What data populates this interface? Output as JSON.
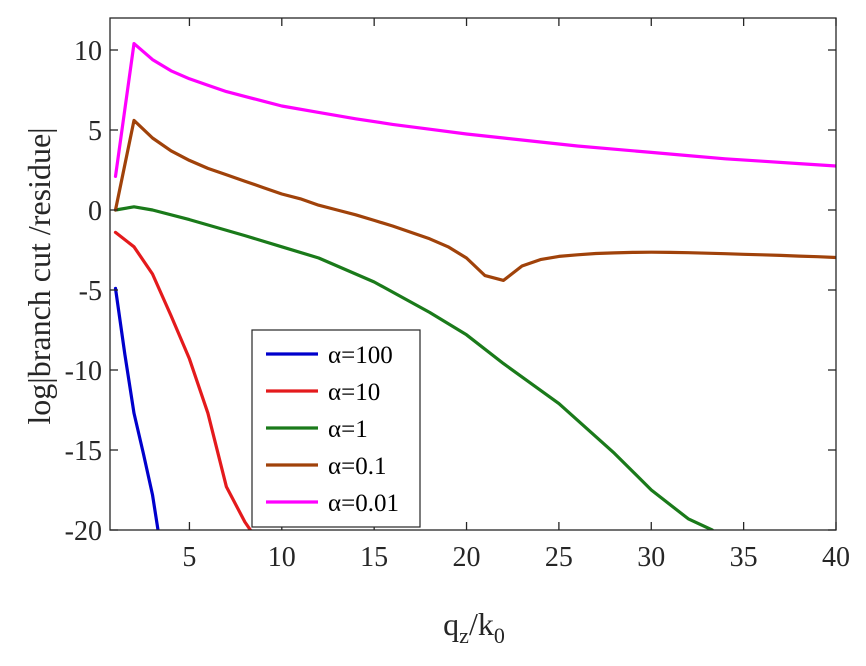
{
  "chart_data": {
    "type": "line",
    "xlabel": {
      "main": "q",
      "sub1": "z",
      "slash": "/k",
      "sub2": "0"
    },
    "ylabel": "log|branch cut /residue|",
    "xlim": [
      0.7,
      40
    ],
    "ylim": [
      -20,
      12
    ],
    "xticks": [
      5,
      10,
      15,
      20,
      25,
      30,
      35,
      40
    ],
    "yticks": [
      10,
      5,
      0,
      -5,
      -10,
      -15,
      -20
    ],
    "grid": false,
    "legend_position": "lower-left",
    "series": [
      {
        "name": "α=100",
        "color": "#0000cc",
        "x": [
          1,
          1.5,
          2,
          2.5,
          3,
          3.3
        ],
        "y": [
          -4.9,
          -9.0,
          -12.7,
          -15.2,
          -17.8,
          -20
        ]
      },
      {
        "name": "α=10",
        "color": "#e41a1c",
        "x": [
          1,
          2,
          3,
          4,
          5,
          6,
          7,
          8,
          8.3
        ],
        "y": [
          -1.4,
          -2.3,
          -4.0,
          -6.6,
          -9.3,
          -12.7,
          -17.3,
          -19.5,
          -20
        ]
      },
      {
        "name": "α=1",
        "color": "#1a7a1a",
        "x": [
          1,
          2,
          3,
          5,
          8,
          10,
          12,
          15,
          18,
          20,
          22,
          25,
          28,
          30,
          32,
          33.3
        ],
        "y": [
          0.0,
          0.2,
          0.0,
          -0.6,
          -1.6,
          -2.3,
          -3.0,
          -4.5,
          -6.4,
          -7.8,
          -9.6,
          -12.1,
          -15.2,
          -17.5,
          -19.3,
          -20.0
        ]
      },
      {
        "name": "α=0.1",
        "color": "#a0420a",
        "x": [
          1,
          2,
          3,
          4,
          5,
          6,
          7,
          8,
          9,
          10,
          11,
          12,
          13,
          14,
          15,
          16,
          17,
          18,
          19,
          20,
          21,
          22,
          23,
          24,
          25,
          26,
          27,
          28,
          29,
          30,
          31,
          32,
          33,
          34,
          35,
          36,
          37,
          38,
          39,
          40
        ],
        "y": [
          0.0,
          5.6,
          4.5,
          3.7,
          3.1,
          2.6,
          2.2,
          1.8,
          1.4,
          1.0,
          0.7,
          0.3,
          0.0,
          -0.3,
          -0.65,
          -1.0,
          -1.4,
          -1.8,
          -2.3,
          -3.0,
          -4.1,
          -4.4,
          -3.5,
          -3.1,
          -2.9,
          -2.8,
          -2.72,
          -2.68,
          -2.65,
          -2.64,
          -2.65,
          -2.67,
          -2.7,
          -2.73,
          -2.77,
          -2.8,
          -2.84,
          -2.88,
          -2.92,
          -2.97
        ]
      },
      {
        "name": "α=0.01",
        "color": "#ff00ff",
        "x": [
          1,
          2,
          3,
          4,
          5,
          6,
          7,
          8,
          9,
          10,
          12,
          14,
          16,
          18,
          20,
          22,
          24,
          26,
          28,
          30,
          32,
          34,
          36,
          38,
          40
        ],
        "y": [
          2.1,
          10.4,
          9.4,
          8.7,
          8.2,
          7.8,
          7.4,
          7.1,
          6.8,
          6.5,
          6.1,
          5.7,
          5.35,
          5.05,
          4.75,
          4.5,
          4.25,
          4.0,
          3.8,
          3.6,
          3.4,
          3.2,
          3.05,
          2.9,
          2.75
        ]
      }
    ]
  }
}
